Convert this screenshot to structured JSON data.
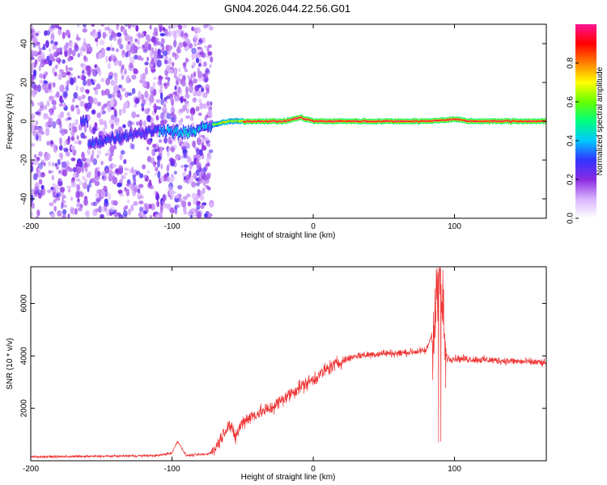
{
  "title": "GN04.2026.044.22.56.G01",
  "chart_data": [
    {
      "type": "heatmap",
      "name": "spectrogram",
      "xlabel": "Height of straight line (km)",
      "ylabel": "Frequency (Hz)",
      "xlim": [
        -200,
        165
      ],
      "ylim": [
        -50,
        50
      ],
      "xticks": [
        -200,
        -100,
        0,
        100
      ],
      "yticks": [
        -40,
        -20,
        0,
        20,
        40
      ],
      "colorbar": {
        "label": "Normalized spectral amplitude",
        "range": [
          0,
          1
        ],
        "ticks": [
          "0.0",
          "0.2",
          "0.4",
          "0.6",
          "0.8"
        ],
        "colors": [
          "#ffffff",
          "#d9b3ff",
          "#8a2be2",
          "#3333ff",
          "#00c8ff",
          "#00ff80",
          "#66ff00",
          "#ffff00",
          "#ff8000",
          "#ff0000",
          "#ff1493"
        ]
      },
      "noise_region_km": [
        -200,
        -72
      ],
      "signal_track": [
        {
          "x": -160,
          "f": -12
        },
        {
          "x": -140,
          "f": -8
        },
        {
          "x": -120,
          "f": -6
        },
        {
          "x": -108,
          "f": -4
        },
        {
          "x": -95,
          "f": -6
        },
        {
          "x": -85,
          "f": -5
        },
        {
          "x": -72,
          "f": -2
        },
        {
          "x": -60,
          "f": 0
        },
        {
          "x": -50,
          "f": 0
        },
        {
          "x": -40,
          "f": 0
        },
        {
          "x": -20,
          "f": 0
        },
        {
          "x": -10,
          "f": 2
        },
        {
          "x": 0,
          "f": 0
        },
        {
          "x": 40,
          "f": 0
        },
        {
          "x": 80,
          "f": 0
        },
        {
          "x": 100,
          "f": 1
        },
        {
          "x": 110,
          "f": 0
        },
        {
          "x": 165,
          "f": 0
        }
      ]
    },
    {
      "type": "line",
      "name": "snr",
      "xlabel": "Height of straight line (km)",
      "ylabel": "SNR (10 * v/v)",
      "xlim": [
        -200,
        165
      ],
      "ylim": [
        0,
        7400
      ],
      "xticks": [
        -200,
        -100,
        0,
        100
      ],
      "yticks": [
        2000,
        4000,
        6000
      ],
      "color": "#ee3333",
      "series": [
        {
          "name": "SNR",
          "x": [
            -200,
            -150,
            -110,
            -100,
            -96,
            -90,
            -75,
            -70,
            -60,
            -55,
            -50,
            -40,
            -30,
            -20,
            -10,
            0,
            10,
            20,
            30,
            40,
            50,
            60,
            70,
            80,
            85,
            88,
            90,
            92,
            95,
            100,
            120,
            140,
            160,
            165
          ],
          "y": [
            150,
            170,
            200,
            300,
            750,
            200,
            250,
            400,
            1400,
            900,
            1500,
            1800,
            2000,
            2400,
            2800,
            3100,
            3500,
            3800,
            4000,
            4050,
            4100,
            4100,
            4150,
            4200,
            5000,
            6500,
            7000,
            4500,
            3900,
            3900,
            3850,
            3800,
            3750,
            3700
          ]
        }
      ]
    }
  ]
}
